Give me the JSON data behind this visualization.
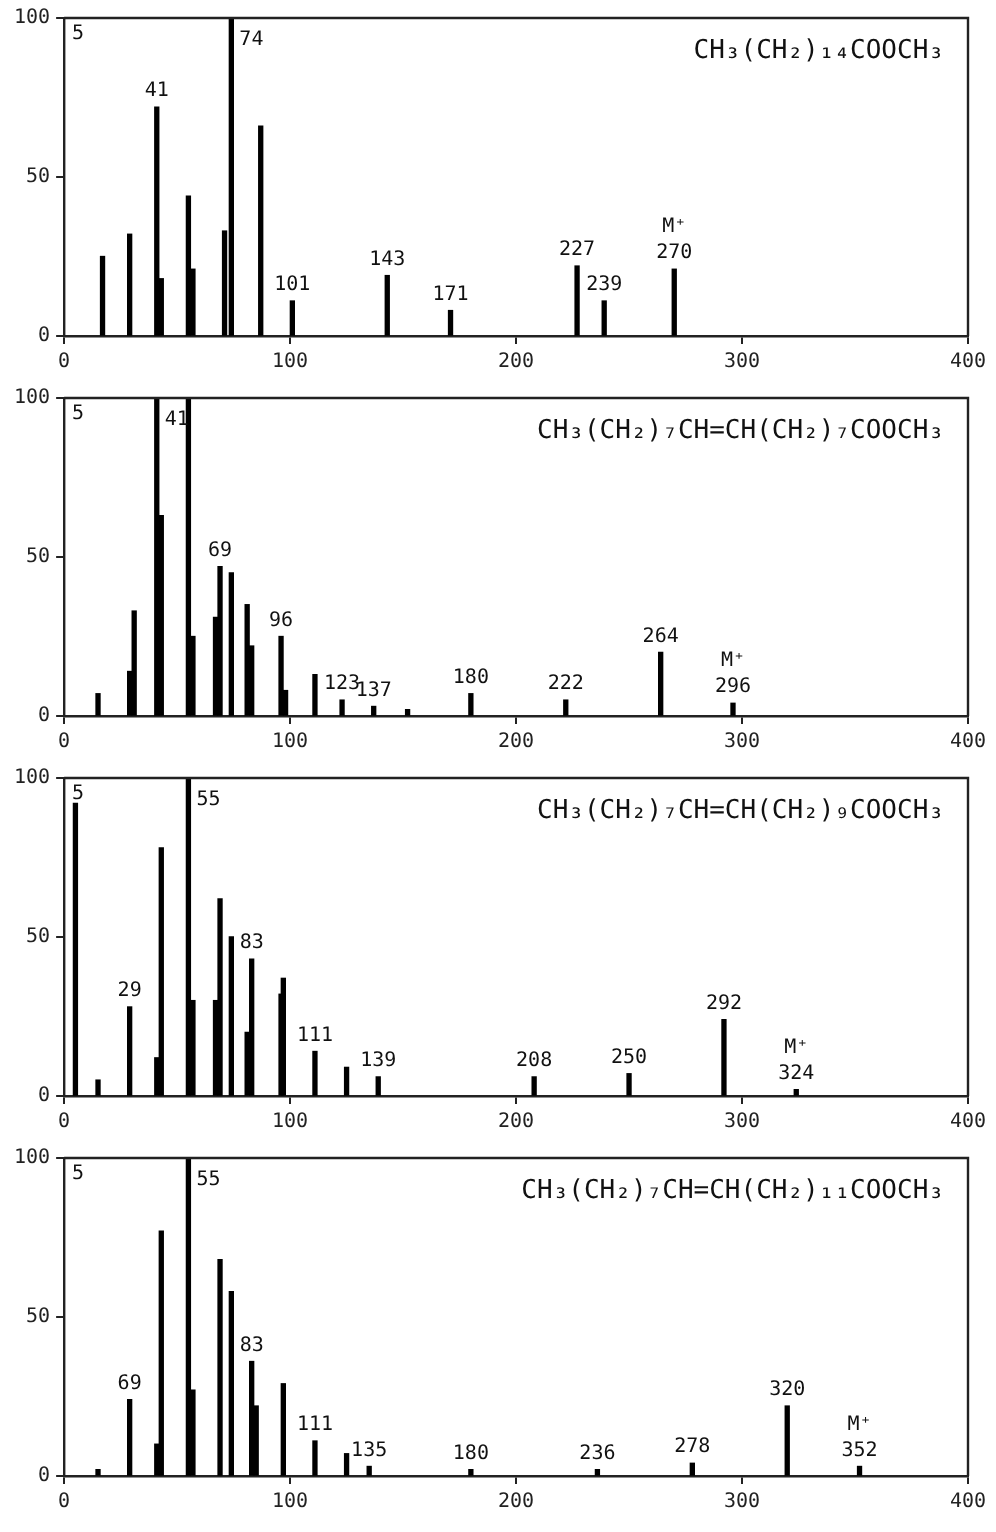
{
  "chart_data": [
    {
      "type": "bar",
      "title": "CH₃(CH₂)₁₄COOCH₃",
      "color": "#000000",
      "xlim": [
        0,
        400
      ],
      "xticks": [
        0,
        100,
        200,
        300,
        400
      ],
      "ylim": [
        0,
        100
      ],
      "yticks": [
        0,
        50,
        100
      ],
      "grid": false,
      "legend": false,
      "x": [
        17,
        29,
        41,
        43,
        55,
        57,
        71,
        74,
        87,
        101,
        143,
        171,
        227,
        239,
        270
      ],
      "values": [
        25,
        32,
        72,
        18,
        44,
        21,
        33,
        100,
        66,
        11,
        19,
        8,
        22,
        11,
        21
      ],
      "annotations": [
        "5",
        {
          "text": "41",
          "x": 41,
          "y": 72
        },
        {
          "text": "74",
          "x": 74,
          "y": 100
        },
        {
          "text": "101",
          "x": 101,
          "y": 11
        },
        {
          "text": "143",
          "x": 143,
          "y": 19
        },
        {
          "text": "171",
          "x": 171,
          "y": 8
        },
        {
          "text": "227",
          "x": 227,
          "y": 22
        },
        {
          "text": "239",
          "x": 239,
          "y": 11
        },
        {
          "text": "270",
          "x": 270,
          "y": 21
        },
        {
          "text": "M⁺",
          "x": 270,
          "y": 21
        }
      ]
    },
    {
      "type": "bar",
      "title": "CH₃(CH₂)₇CH=CH(CH₂)₇COOCH₃",
      "color": "#000000",
      "xlim": [
        0,
        400
      ],
      "xticks": [
        0,
        100,
        200,
        300,
        400
      ],
      "ylim": [
        0,
        100
      ],
      "yticks": [
        0,
        50,
        100
      ],
      "grid": false,
      "legend": false,
      "x": [
        15,
        29,
        31,
        41,
        43,
        55,
        57,
        67,
        69,
        74,
        81,
        83,
        96,
        98,
        111,
        123,
        137,
        152,
        180,
        222,
        264,
        296
      ],
      "values": [
        7,
        14,
        33,
        100,
        63,
        100,
        25,
        31,
        47,
        45,
        35,
        22,
        25,
        8,
        13,
        5,
        3,
        2,
        7,
        5,
        20,
        4
      ],
      "annotations": [
        "5",
        {
          "text": "41",
          "x": 41,
          "y": 100
        },
        {
          "text": "69",
          "x": 69,
          "y": 47
        },
        {
          "text": "96",
          "x": 96,
          "y": 25
        },
        {
          "text": "123",
          "x": 123,
          "y": 5
        },
        {
          "text": "137",
          "x": 137,
          "y": 3
        },
        {
          "text": "180",
          "x": 180,
          "y": 7
        },
        {
          "text": "222",
          "x": 222,
          "y": 5
        },
        {
          "text": "264",
          "x": 264,
          "y": 20
        },
        {
          "text": "296",
          "x": 296,
          "y": 4
        },
        {
          "text": "M⁺",
          "x": 296,
          "y": 4
        }
      ]
    },
    {
      "type": "bar",
      "title": "CH₃(CH₂)₇CH=CH(CH₂)₉COOCH₃",
      "color": "#000000",
      "xlim": [
        0,
        400
      ],
      "xticks": [
        0,
        100,
        200,
        300,
        400
      ],
      "ylim": [
        0,
        100
      ],
      "yticks": [
        0,
        50,
        100
      ],
      "grid": false,
      "legend": false,
      "x": [
        5,
        15,
        29,
        41,
        43,
        55,
        57,
        67,
        69,
        74,
        81,
        83,
        96,
        97,
        111,
        125,
        139,
        208,
        250,
        292,
        324
      ],
      "values": [
        92,
        5,
        28,
        12,
        78,
        100,
        30,
        30,
        62,
        50,
        20,
        43,
        32,
        37,
        14,
        9,
        6,
        6,
        7,
        24,
        2
      ],
      "annotations": [
        "5",
        {
          "text": "29",
          "x": 29,
          "y": 28
        },
        {
          "text": "55",
          "x": 55,
          "y": 100
        },
        {
          "text": "83",
          "x": 83,
          "y": 43
        },
        {
          "text": "111",
          "x": 111,
          "y": 14
        },
        {
          "text": "139",
          "x": 139,
          "y": 6
        },
        {
          "text": "208",
          "x": 208,
          "y": 6
        },
        {
          "text": "250",
          "x": 250,
          "y": 7
        },
        {
          "text": "292",
          "x": 292,
          "y": 24
        },
        {
          "text": "324",
          "x": 324,
          "y": 2
        },
        {
          "text": "M⁺",
          "x": 324,
          "y": 2
        }
      ]
    },
    {
      "type": "bar",
      "title": "CH₃(CH₂)₇CH=CH(CH₂)₁₁COOCH₃",
      "color": "#000000",
      "xlim": [
        0,
        400
      ],
      "xticks": [
        0,
        100,
        200,
        300,
        400
      ],
      "ylim": [
        0,
        100
      ],
      "yticks": [
        0,
        50,
        100
      ],
      "grid": false,
      "legend": false,
      "x": [
        15,
        29,
        41,
        43,
        55,
        57,
        69,
        74,
        83,
        85,
        97,
        111,
        125,
        135,
        180,
        236,
        278,
        320,
        352
      ],
      "values": [
        2,
        24,
        10,
        77,
        100,
        27,
        68,
        58,
        36,
        22,
        29,
        11,
        7,
        3,
        2,
        2,
        4,
        22,
        3
      ],
      "annotations": [
        "5",
        {
          "text": "69",
          "x": 29,
          "y": 24
        },
        {
          "text": "55",
          "x": 55,
          "y": 100
        },
        {
          "text": "83",
          "x": 83,
          "y": 36
        },
        {
          "text": "111",
          "x": 111,
          "y": 11
        },
        {
          "text": "135",
          "x": 135,
          "y": 3
        },
        {
          "text": "180",
          "x": 180,
          "y": 2
        },
        {
          "text": "236",
          "x": 236,
          "y": 2
        },
        {
          "text": "278",
          "x": 278,
          "y": 4
        },
        {
          "text": "320",
          "x": 320,
          "y": 22
        },
        {
          "text": "352",
          "x": 352,
          "y": 3
        },
        {
          "text": "M⁺",
          "x": 352,
          "y": 3
        }
      ]
    }
  ]
}
